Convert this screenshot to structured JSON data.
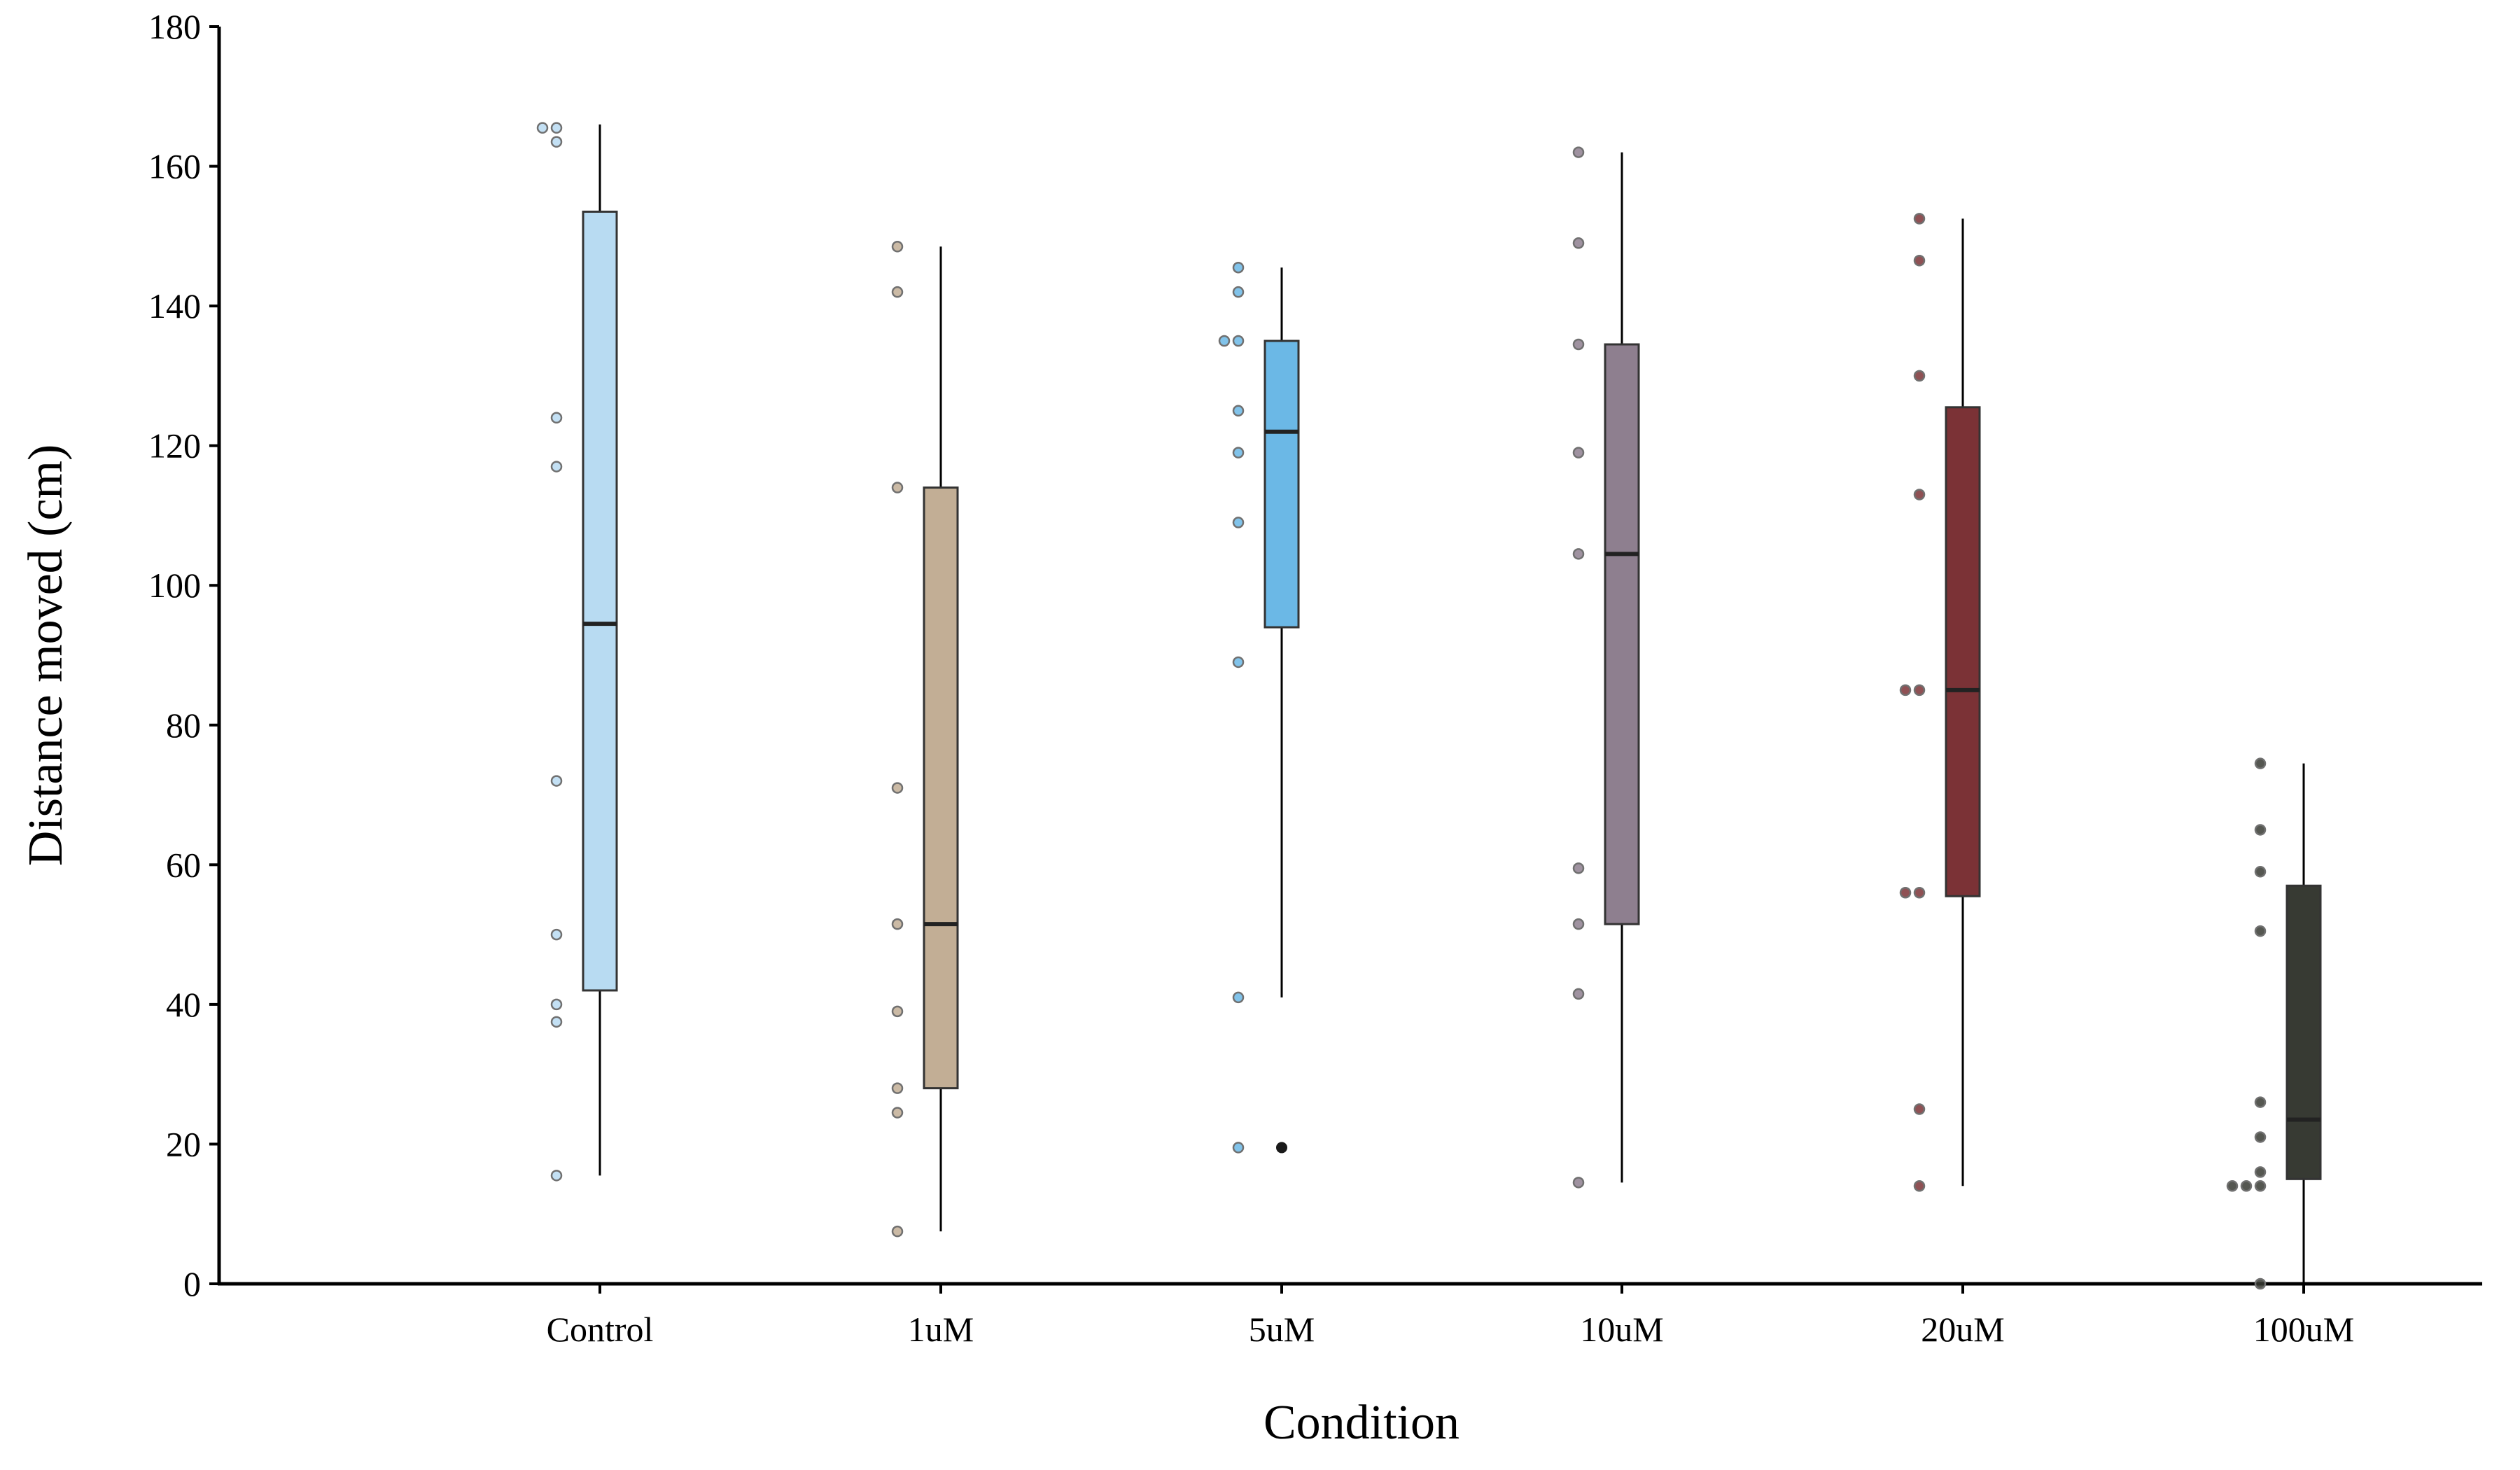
{
  "chart_data": {
    "type": "box",
    "title": "",
    "xlabel": "Condition",
    "ylabel": "Distance moved (cm)",
    "ylim": [
      0,
      180
    ],
    "yticks": [
      0,
      20,
      40,
      60,
      80,
      100,
      120,
      140,
      160,
      180
    ],
    "grid": false,
    "legend": "none",
    "categories": [
      "Control",
      "1uM",
      "5uM",
      "10uM",
      "20uM",
      "100uM"
    ],
    "boxes": [
      {
        "category": "Control",
        "color": "#b8dbf2",
        "whisker_low": 15.5,
        "q1": 42,
        "median": 94.5,
        "q3": 153.5,
        "whisker_high": 166,
        "outliers": [],
        "points": [
          165.5,
          165.5,
          163.5,
          124,
          117,
          72,
          50,
          40,
          37.5,
          15.5
        ]
      },
      {
        "category": "1uM",
        "color": "#c2ae95",
        "whisker_low": 7.5,
        "q1": 28,
        "median": 51.5,
        "q3": 114,
        "whisker_high": 148.5,
        "outliers": [],
        "points": [
          148.5,
          142,
          114,
          71,
          51.5,
          39,
          28,
          24.5,
          7.5
        ]
      },
      {
        "category": "5uM",
        "color": "#6bb8e6",
        "whisker_low": 41,
        "q1": 94,
        "median": 122,
        "q3": 135,
        "whisker_high": 145.5,
        "outliers": [
          19.5
        ],
        "points": [
          145.5,
          142,
          135,
          135,
          125,
          119,
          109,
          89,
          41,
          19.5
        ]
      },
      {
        "category": "10uM",
        "color": "#8e7f8f",
        "whisker_low": 14.5,
        "q1": 51.5,
        "median": 104.5,
        "q3": 134.5,
        "whisker_high": 162,
        "outliers": [],
        "points": [
          162,
          149,
          134.5,
          119,
          104.5,
          59.5,
          51.5,
          41.5,
          14.5
        ]
      },
      {
        "category": "20uM",
        "color": "#7b3236",
        "whisker_low": 14,
        "q1": 55.5,
        "median": 85,
        "q3": 125.5,
        "whisker_high": 152.5,
        "outliers": [],
        "points": [
          152.5,
          146.5,
          130,
          113,
          85,
          85,
          56,
          56,
          25,
          14
        ]
      },
      {
        "category": "100uM",
        "color": "#373a33",
        "whisker_low": 0,
        "q1": 15,
        "median": 23.5,
        "q3": 57,
        "whisker_high": 74.5,
        "outliers": [],
        "points": [
          74.5,
          65,
          59,
          50.5,
          26,
          21,
          16,
          14,
          14,
          14,
          0
        ]
      }
    ]
  }
}
